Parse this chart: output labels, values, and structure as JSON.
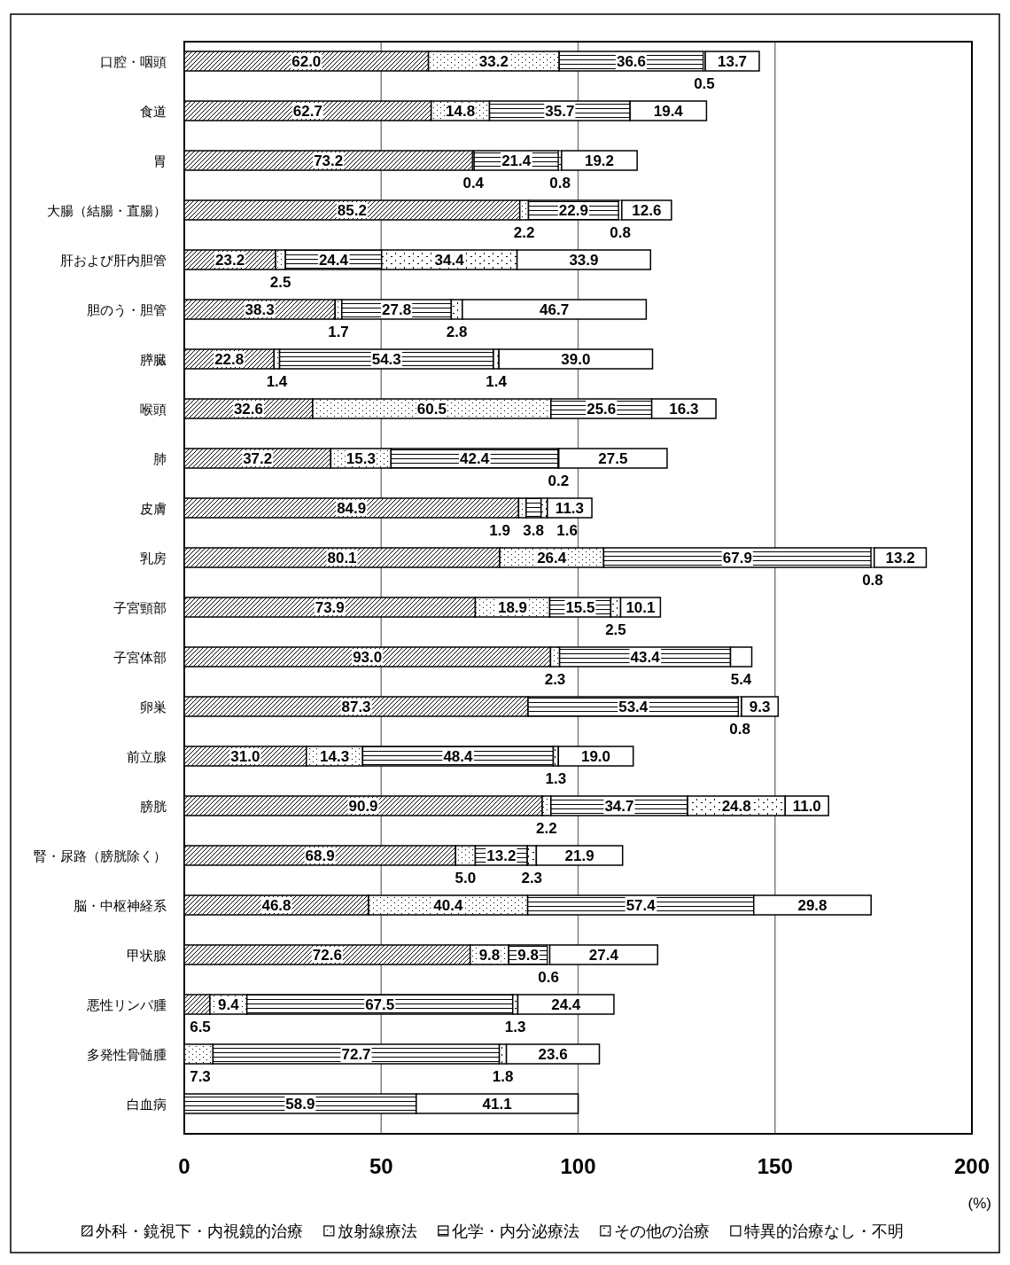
{
  "chart_data": {
    "type": "bar",
    "orientation": "horizontal",
    "stacked": true,
    "categories": [
      "口腔・咽頭",
      "食道",
      "胃",
      "大腸（結腸・直腸）",
      "肝および肝内胆管",
      "胆のう・胆管",
      "膵臓",
      "喉頭",
      "肺",
      "皮膚",
      "乳房",
      "子宮頸部",
      "子宮体部",
      "卵巣",
      "前立腺",
      "膀胱",
      "腎・尿路（膀胱除く）",
      "脳・中枢神経系",
      "甲状腺",
      "悪性リンパ腫",
      "多発性骨髄腫",
      "白血病"
    ],
    "series": [
      {
        "name": "外科・鏡視下・内視鏡的治療",
        "color": "#000000",
        "values": [
          62.0,
          62.7,
          73.2,
          85.2,
          23.2,
          38.3,
          22.8,
          32.6,
          37.2,
          84.9,
          80.1,
          73.9,
          93.0,
          87.3,
          31.0,
          90.9,
          68.9,
          46.8,
          72.6,
          6.5,
          null,
          null
        ],
        "value_labels": [
          "62.0",
          "62.7",
          "73.2",
          "85.2",
          "23.2",
          "38.3",
          "22.8",
          "32.6",
          "37.2",
          "84.9",
          "80.1",
          "73.9",
          "93.0",
          "87.3",
          "31.0",
          "90.9",
          "68.9",
          "46.8",
          "72.6",
          "6.5",
          null,
          null
        ]
      },
      {
        "name": "放射線療法",
        "color": "#000000",
        "values": [
          33.2,
          14.8,
          0.4,
          2.2,
          2.5,
          1.7,
          1.4,
          60.5,
          15.3,
          1.9,
          26.4,
          18.9,
          2.3,
          null,
          14.3,
          2.2,
          5.0,
          40.4,
          9.8,
          9.4,
          7.3,
          null
        ],
        "value_labels": [
          "33.2",
          "14.8",
          "0.4",
          "2.2",
          "2.5",
          "1.7",
          "1.4",
          "60.5",
          "15.3",
          "1.9",
          "26.4",
          "18.9",
          "2.3",
          null,
          "14.3",
          "2.2",
          "5.0",
          "40.4",
          "9.8",
          "9.4",
          "7.3",
          null
        ]
      },
      {
        "name": "化学・内分泌療法",
        "color": "#000000",
        "values": [
          36.6,
          35.7,
          21.4,
          22.9,
          24.4,
          27.8,
          54.3,
          25.6,
          42.4,
          3.8,
          67.9,
          15.5,
          43.4,
          53.4,
          48.4,
          34.7,
          13.2,
          57.4,
          9.8,
          67.5,
          72.7,
          58.9
        ],
        "value_labels": [
          "36.6",
          "35.7",
          "21.4",
          "22.9",
          "24.4",
          "27.8",
          "54.3",
          "25.6",
          "42.4",
          "3.8",
          "67.9",
          "15.5",
          "43.4",
          "53.4",
          "48.4",
          "34.7",
          "13.2",
          "57.4",
          "9.8",
          "67.5",
          "72.7",
          "58.9"
        ]
      },
      {
        "name": "その他の治療",
        "color": "#000000",
        "values": [
          0.5,
          null,
          0.8,
          0.8,
          34.4,
          2.8,
          1.4,
          null,
          0.2,
          1.6,
          0.8,
          2.5,
          null,
          0.8,
          1.3,
          24.8,
          2.3,
          null,
          0.6,
          1.3,
          1.8,
          null
        ],
        "value_labels": [
          "0.5",
          null,
          "0.8",
          "0.8",
          "34.4",
          "2.8",
          "1.4",
          null,
          "0.2",
          "1.6",
          "0.8",
          "2.5",
          null,
          "0.8",
          "1.3",
          "24.8",
          "2.3",
          null,
          "0.6",
          "1.3",
          "1.8",
          null
        ]
      },
      {
        "name": "特異的治療なし・不明",
        "color": "#ffffff",
        "values": [
          13.7,
          19.4,
          19.2,
          12.6,
          33.9,
          46.7,
          39.0,
          16.3,
          27.5,
          11.3,
          13.2,
          10.1,
          5.4,
          9.3,
          19.0,
          11.0,
          21.9,
          29.8,
          27.4,
          24.4,
          23.6,
          41.1
        ],
        "value_labels": [
          "13.7",
          "19.4",
          "19.2",
          "12.6",
          "33.9",
          "46.7",
          "39.0",
          "16.3",
          "27.5",
          "11.3",
          "13.2",
          "10.1",
          "5.4",
          "9.3",
          "19.0",
          "11.0",
          "21.9",
          "29.8",
          "27.4",
          "24.4",
          "23.6",
          "41.1"
        ]
      }
    ],
    "xlim": [
      0,
      200
    ],
    "xticks": [
      0,
      50,
      100,
      150,
      200
    ],
    "grid": "x",
    "legend": "bottom",
    "annotations": [
      "(%)"
    ]
  }
}
